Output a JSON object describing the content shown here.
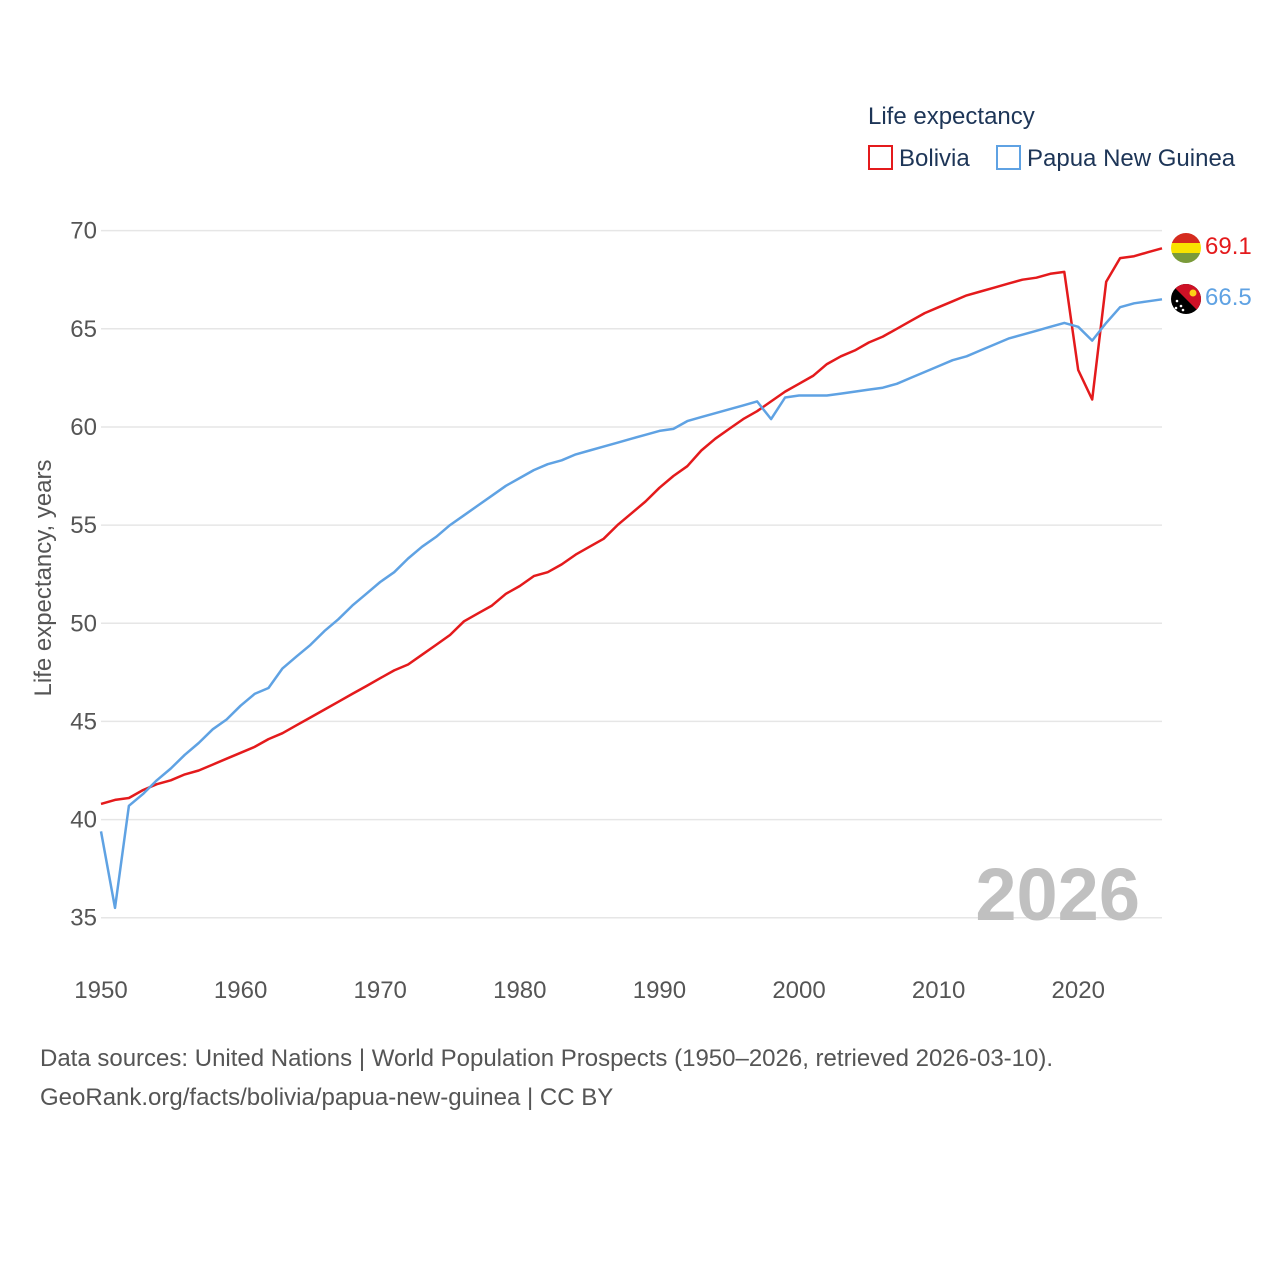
{
  "colors": {
    "bolivia": "#e41a1c",
    "png": "#5fa2e3",
    "grid": "#e6e6e6",
    "text": "#555555",
    "watermark": "#c0c0c0"
  },
  "legend": {
    "title": "Life expectancy",
    "items": [
      "Bolivia",
      "Papua New Guinea"
    ]
  },
  "year_watermark": "2026",
  "footer": {
    "line1": "Data sources: United Nations | World Population Prospects (1950–2026, retrieved 2026-03-10).",
    "line2": "GeoRank.org/facts/bolivia/papua-new-guinea | CC BY"
  },
  "chart_data": {
    "type": "line",
    "title": "Life expectancy",
    "xlabel": "",
    "ylabel": "Life expectancy, years",
    "xlim": [
      1950,
      2026
    ],
    "ylim": [
      33,
      71
    ],
    "xticks": [
      1950,
      1960,
      1970,
      1980,
      1990,
      2000,
      2010,
      2020
    ],
    "yticks": [
      35,
      40,
      45,
      50,
      55,
      60,
      65,
      70
    ],
    "grid": true,
    "legend_position": "top-right",
    "x": [
      1950,
      1951,
      1952,
      1953,
      1954,
      1955,
      1956,
      1957,
      1958,
      1959,
      1960,
      1961,
      1962,
      1963,
      1964,
      1965,
      1966,
      1967,
      1968,
      1969,
      1970,
      1971,
      1972,
      1973,
      1974,
      1975,
      1976,
      1977,
      1978,
      1979,
      1980,
      1981,
      1982,
      1983,
      1984,
      1985,
      1986,
      1987,
      1988,
      1989,
      1990,
      1991,
      1992,
      1993,
      1994,
      1995,
      1996,
      1997,
      1998,
      1999,
      2000,
      2001,
      2002,
      2003,
      2004,
      2005,
      2006,
      2007,
      2008,
      2009,
      2010,
      2011,
      2012,
      2013,
      2014,
      2015,
      2016,
      2017,
      2018,
      2019,
      2020,
      2021,
      2022,
      2023,
      2024,
      2025,
      2026
    ],
    "series": [
      {
        "name": "Bolivia",
        "color": "#e41a1c",
        "end_label": "69.1",
        "flag": "bolivia-flag-icon",
        "values": [
          40.8,
          41.0,
          41.1,
          41.5,
          41.8,
          42.0,
          42.3,
          42.5,
          42.8,
          43.1,
          43.4,
          43.7,
          44.1,
          44.4,
          44.8,
          45.2,
          45.6,
          46.0,
          46.4,
          46.8,
          47.2,
          47.6,
          47.9,
          48.4,
          48.9,
          49.4,
          50.1,
          50.5,
          50.9,
          51.5,
          51.9,
          52.4,
          52.6,
          53.0,
          53.5,
          53.9,
          54.3,
          55.0,
          55.6,
          56.2,
          56.9,
          57.5,
          58.0,
          58.8,
          59.4,
          59.9,
          60.4,
          60.8,
          61.3,
          61.8,
          62.2,
          62.6,
          63.2,
          63.6,
          63.9,
          64.3,
          64.6,
          65.0,
          65.4,
          65.8,
          66.1,
          66.4,
          66.7,
          66.9,
          67.1,
          67.3,
          67.5,
          67.6,
          67.8,
          67.9,
          62.9,
          61.4,
          67.4,
          68.6,
          68.7,
          68.9,
          69.1
        ]
      },
      {
        "name": "Papua New Guinea",
        "color": "#5fa2e3",
        "end_label": "66.5",
        "flag": "png-flag-icon",
        "values": [
          39.4,
          35.5,
          40.7,
          41.3,
          42.0,
          42.6,
          43.3,
          43.9,
          44.6,
          45.1,
          45.8,
          46.4,
          46.7,
          47.7,
          48.3,
          48.9,
          49.6,
          50.2,
          50.9,
          51.5,
          52.1,
          52.6,
          53.3,
          53.9,
          54.4,
          55.0,
          55.5,
          56.0,
          56.5,
          57.0,
          57.4,
          57.8,
          58.1,
          58.3,
          58.6,
          58.8,
          59.0,
          59.2,
          59.4,
          59.6,
          59.8,
          59.9,
          60.3,
          60.5,
          60.7,
          60.9,
          61.1,
          61.3,
          60.4,
          61.5,
          61.6,
          61.6,
          61.6,
          61.7,
          61.8,
          61.9,
          62.0,
          62.2,
          62.5,
          62.8,
          63.1,
          63.4,
          63.6,
          63.9,
          64.2,
          64.5,
          64.7,
          64.9,
          65.1,
          65.3,
          65.1,
          64.4,
          65.3,
          66.1,
          66.3,
          66.4,
          66.5
        ]
      }
    ]
  }
}
